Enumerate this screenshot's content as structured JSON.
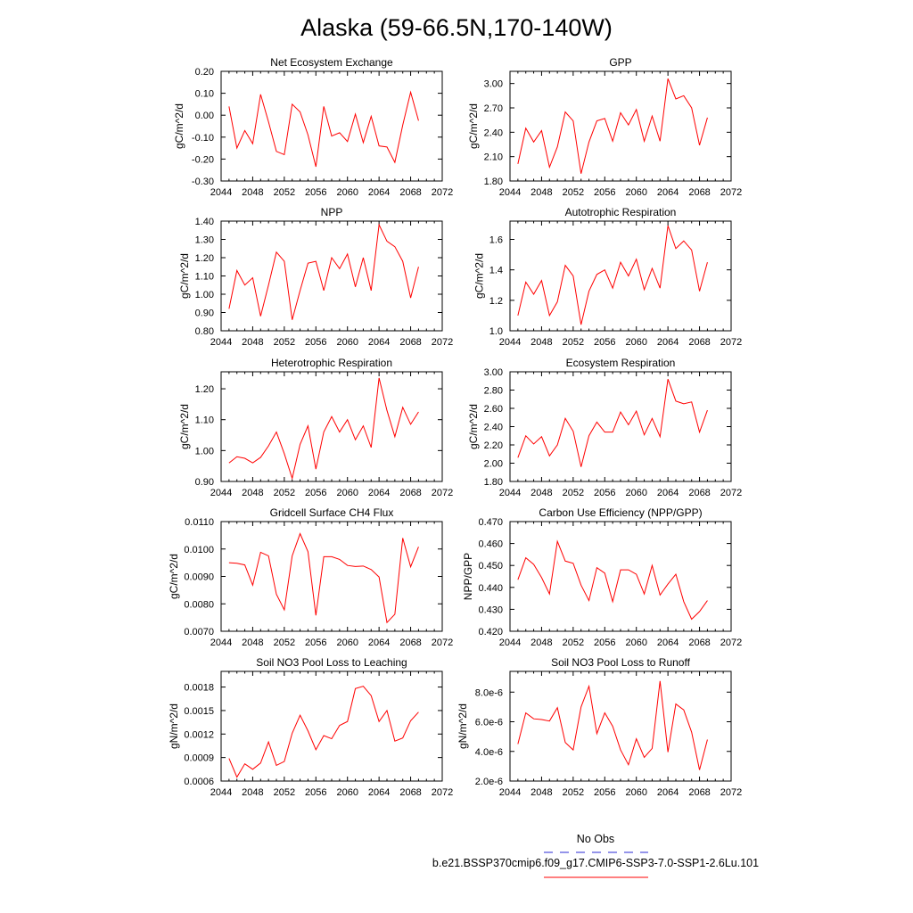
{
  "page_title": "Alaska (59-66.5N,170-140W)",
  "legend": {
    "obs_label": "No Obs",
    "obs_color": "#5555dd",
    "model_label": "b.e21.BSSP370cmip6.f09_g17.CMIP6-SSP3-7.0-SSP1-2.6Lu.101",
    "model_color": "#ff0000"
  },
  "line_color": "#ff0000",
  "chart_data": [
    {
      "type": "line",
      "title": "Net Ecosystem Exchange",
      "ylabel": "gC/m^2/d",
      "xlim": [
        2044,
        2072
      ],
      "x_ticks": [
        "2044",
        "2048",
        "2052",
        "2056",
        "2060",
        "2064",
        "2068",
        "2072"
      ],
      "ylim": [
        -0.3,
        0.2
      ],
      "y_ticks": [
        "-0.30",
        "-0.20",
        "-0.10",
        "0.00",
        "0.10",
        "0.20"
      ],
      "x": [
        2045,
        2046,
        2047,
        2048,
        2049,
        2050,
        2051,
        2052,
        2053,
        2054,
        2055,
        2056,
        2057,
        2058,
        2059,
        2060,
        2061,
        2062,
        2063,
        2064,
        2065,
        2066,
        2067,
        2068,
        2069
      ],
      "values": [
        0.04,
        -0.15,
        -0.07,
        -0.13,
        0.095,
        -0.03,
        -0.165,
        -0.18,
        0.05,
        0.015,
        -0.09,
        -0.235,
        0.04,
        -0.095,
        -0.08,
        -0.12,
        0.005,
        -0.125,
        -0.005,
        -0.14,
        -0.145,
        -0.215,
        -0.045,
        0.105,
        -0.025
      ]
    },
    {
      "type": "line",
      "title": "GPP",
      "ylabel": "gC/m^2/d",
      "xlim": [
        2044,
        2072
      ],
      "x_ticks": [
        "2044",
        "2048",
        "2052",
        "2056",
        "2060",
        "2064",
        "2068",
        "2072"
      ],
      "ylim": [
        1.8,
        3.15
      ],
      "y_ticks": [
        "1.80",
        "2.10",
        "2.40",
        "2.70",
        "3.00"
      ],
      "x": [
        2045,
        2046,
        2047,
        2048,
        2049,
        2050,
        2051,
        2052,
        2053,
        2054,
        2055,
        2056,
        2057,
        2058,
        2059,
        2060,
        2061,
        2062,
        2063,
        2064,
        2065,
        2066,
        2067,
        2068,
        2069
      ],
      "values": [
        2.01,
        2.45,
        2.28,
        2.42,
        1.97,
        2.22,
        2.65,
        2.54,
        1.89,
        2.28,
        2.54,
        2.57,
        2.29,
        2.64,
        2.49,
        2.68,
        2.29,
        2.6,
        2.29,
        3.06,
        2.81,
        2.85,
        2.7,
        2.24,
        2.58
      ]
    },
    {
      "type": "line",
      "title": "NPP",
      "ylabel": "gC/m^2/d",
      "xlim": [
        2044,
        2072
      ],
      "x_ticks": [
        "2044",
        "2048",
        "2052",
        "2056",
        "2060",
        "2064",
        "2068",
        "2072"
      ],
      "ylim": [
        0.8,
        1.4
      ],
      "y_ticks": [
        "0.80",
        "0.90",
        "1.00",
        "1.10",
        "1.20",
        "1.30",
        "1.40"
      ],
      "x": [
        2045,
        2046,
        2047,
        2048,
        2049,
        2050,
        2051,
        2052,
        2053,
        2054,
        2055,
        2056,
        2057,
        2058,
        2059,
        2060,
        2061,
        2062,
        2063,
        2064,
        2065,
        2066,
        2067,
        2068,
        2069
      ],
      "values": [
        0.92,
        1.13,
        1.05,
        1.09,
        0.88,
        1.05,
        1.23,
        1.18,
        0.86,
        1.02,
        1.17,
        1.18,
        1.02,
        1.2,
        1.14,
        1.22,
        1.04,
        1.2,
        1.02,
        1.38,
        1.29,
        1.26,
        1.18,
        0.98,
        1.15
      ]
    },
    {
      "type": "line",
      "title": "Autotrophic Respiration",
      "ylabel": "gC/m^2/d",
      "xlim": [
        2044,
        2072
      ],
      "x_ticks": [
        "2044",
        "2048",
        "2052",
        "2056",
        "2060",
        "2064",
        "2068",
        "2072"
      ],
      "ylim": [
        1.0,
        1.72
      ],
      "y_ticks": [
        "1.0",
        "1.2",
        "1.4",
        "1.6"
      ],
      "x": [
        2045,
        2046,
        2047,
        2048,
        2049,
        2050,
        2051,
        2052,
        2053,
        2054,
        2055,
        2056,
        2057,
        2058,
        2059,
        2060,
        2061,
        2062,
        2063,
        2064,
        2065,
        2066,
        2067,
        2068,
        2069
      ],
      "values": [
        1.1,
        1.32,
        1.24,
        1.33,
        1.1,
        1.19,
        1.43,
        1.36,
        1.04,
        1.26,
        1.37,
        1.4,
        1.28,
        1.45,
        1.36,
        1.47,
        1.27,
        1.41,
        1.28,
        1.69,
        1.54,
        1.59,
        1.53,
        1.26,
        1.45
      ]
    },
    {
      "type": "line",
      "title": "Heterotrophic Respiration",
      "ylabel": "gC/m^2/d",
      "xlim": [
        2044,
        2072
      ],
      "x_ticks": [
        "2044",
        "2048",
        "2052",
        "2056",
        "2060",
        "2064",
        "2068",
        "2072"
      ],
      "ylim": [
        0.9,
        1.255
      ],
      "y_ticks": [
        "0.90",
        "1.00",
        "1.10",
        "1.20"
      ],
      "x": [
        2045,
        2046,
        2047,
        2048,
        2049,
        2050,
        2051,
        2052,
        2053,
        2054,
        2055,
        2056,
        2057,
        2058,
        2059,
        2060,
        2061,
        2062,
        2063,
        2064,
        2065,
        2066,
        2067,
        2068,
        2069
      ],
      "values": [
        0.96,
        0.98,
        0.975,
        0.96,
        0.978,
        1.015,
        1.06,
        0.99,
        0.91,
        1.02,
        1.08,
        0.94,
        1.06,
        1.11,
        1.06,
        1.1,
        1.035,
        1.08,
        1.01,
        1.235,
        1.13,
        1.045,
        1.14,
        1.085,
        1.125
      ]
    },
    {
      "type": "line",
      "title": "Ecosystem Respiration",
      "ylabel": "gC/m^2/d",
      "xlim": [
        2044,
        2072
      ],
      "x_ticks": [
        "2044",
        "2048",
        "2052",
        "2056",
        "2060",
        "2064",
        "2068",
        "2072"
      ],
      "ylim": [
        1.8,
        3.0
      ],
      "y_ticks": [
        "1.80",
        "2.00",
        "2.20",
        "2.40",
        "2.60",
        "2.80",
        "3.00"
      ],
      "x": [
        2045,
        2046,
        2047,
        2048,
        2049,
        2050,
        2051,
        2052,
        2053,
        2054,
        2055,
        2056,
        2057,
        2058,
        2059,
        2060,
        2061,
        2062,
        2063,
        2064,
        2065,
        2066,
        2067,
        2068,
        2069
      ],
      "values": [
        2.06,
        2.3,
        2.21,
        2.29,
        2.08,
        2.2,
        2.49,
        2.35,
        1.96,
        2.3,
        2.45,
        2.34,
        2.34,
        2.56,
        2.42,
        2.57,
        2.31,
        2.49,
        2.29,
        2.92,
        2.68,
        2.65,
        2.67,
        2.34,
        2.58
      ]
    },
    {
      "type": "line",
      "title": "Gridcell Surface CH4 Flux",
      "ylabel": "gC/m^2/d",
      "xlim": [
        2044,
        2072
      ],
      "x_ticks": [
        "2044",
        "2048",
        "2052",
        "2056",
        "2060",
        "2064",
        "2068",
        "2072"
      ],
      "ylim": [
        0.007,
        0.011
      ],
      "y_ticks": [
        "0.0070",
        "0.0080",
        "0.0090",
        "0.0100",
        "0.0110"
      ],
      "x": [
        2045,
        2046,
        2047,
        2048,
        2049,
        2050,
        2051,
        2052,
        2053,
        2054,
        2055,
        2056,
        2057,
        2058,
        2059,
        2060,
        2061,
        2062,
        2063,
        2064,
        2065,
        2066,
        2067,
        2068,
        2069
      ],
      "values": [
        0.0095,
        0.00948,
        0.00942,
        0.00868,
        0.00988,
        0.00975,
        0.00835,
        0.00778,
        0.00975,
        0.01056,
        0.0099,
        0.00758,
        0.00972,
        0.00972,
        0.00962,
        0.0094,
        0.00936,
        0.00938,
        0.00925,
        0.00898,
        0.00732,
        0.00762,
        0.0104,
        0.00935,
        0.01008
      ]
    },
    {
      "type": "line",
      "title": "Carbon Use Efficiency (NPP/GPP)",
      "ylabel": "NPP/GPP",
      "xlim": [
        2044,
        2072
      ],
      "x_ticks": [
        "2044",
        "2048",
        "2052",
        "2056",
        "2060",
        "2064",
        "2068",
        "2072"
      ],
      "ylim": [
        0.42,
        0.47
      ],
      "y_ticks": [
        "0.420",
        "0.430",
        "0.440",
        "0.450",
        "0.460",
        "0.470"
      ],
      "x": [
        2045,
        2046,
        2047,
        2048,
        2049,
        2050,
        2051,
        2052,
        2053,
        2054,
        2055,
        2056,
        2057,
        2058,
        2059,
        2060,
        2061,
        2062,
        2063,
        2064,
        2065,
        2066,
        2067,
        2068,
        2069
      ],
      "values": [
        0.4435,
        0.4535,
        0.4505,
        0.4445,
        0.437,
        0.461,
        0.452,
        0.451,
        0.441,
        0.434,
        0.449,
        0.4465,
        0.4335,
        0.448,
        0.448,
        0.446,
        0.437,
        0.45,
        0.4365,
        0.4415,
        0.446,
        0.4335,
        0.4255,
        0.429,
        0.434
      ]
    },
    {
      "type": "line",
      "title": "Soil NO3 Pool Loss to Leaching",
      "ylabel": "gN/m^2/d",
      "xlim": [
        2044,
        2072
      ],
      "x_ticks": [
        "2044",
        "2048",
        "2052",
        "2056",
        "2060",
        "2064",
        "2068",
        "2072"
      ],
      "ylim": [
        0.0006,
        0.002
      ],
      "y_ticks": [
        "0.0006",
        "0.0009",
        "0.0012",
        "0.0015",
        "0.0018"
      ],
      "x": [
        2045,
        2046,
        2047,
        2048,
        2049,
        2050,
        2051,
        2052,
        2053,
        2054,
        2055,
        2056,
        2057,
        2058,
        2059,
        2060,
        2061,
        2062,
        2063,
        2064,
        2065,
        2066,
        2067,
        2068,
        2069
      ],
      "values": [
        0.00089,
        0.00065,
        0.00082,
        0.00075,
        0.00083,
        0.0011,
        0.0008,
        0.00085,
        0.00121,
        0.00144,
        0.00124,
        0.001,
        0.00118,
        0.00114,
        0.00131,
        0.00136,
        0.00178,
        0.00181,
        0.00169,
        0.00136,
        0.0015,
        0.00111,
        0.00115,
        0.00137,
        0.00148
      ]
    },
    {
      "type": "line",
      "title": "Soil NO3 Pool Loss to Runoff",
      "ylabel": "gN/m^2/d",
      "xlim": [
        2044,
        2072
      ],
      "x_ticks": [
        "2044",
        "2048",
        "2052",
        "2056",
        "2060",
        "2064",
        "2068",
        "2072"
      ],
      "ylim": [
        2e-06,
        9.4e-06
      ],
      "y_ticks": [
        "2.0e-6",
        "4.0e-6",
        "6.0e-6",
        "8.0e-6"
      ],
      "x": [
        2045,
        2046,
        2047,
        2048,
        2049,
        2050,
        2051,
        2052,
        2053,
        2054,
        2055,
        2056,
        2057,
        2058,
        2059,
        2060,
        2061,
        2062,
        2063,
        2064,
        2065,
        2066,
        2067,
        2068,
        2069
      ],
      "values": [
        4.5e-06,
        6.6e-06,
        6.2e-06,
        6.15e-06,
        6.05e-06,
        6.95e-06,
        4.6e-06,
        4.1e-06,
        7e-06,
        8.4e-06,
        5.2e-06,
        6.6e-06,
        5.7e-06,
        4.1e-06,
        3.1e-06,
        4.85e-06,
        3.6e-06,
        4.2e-06,
        8.75e-06,
        3.95e-06,
        7.2e-06,
        6.8e-06,
        5.3e-06,
        2.75e-06,
        4.8e-06
      ]
    }
  ]
}
